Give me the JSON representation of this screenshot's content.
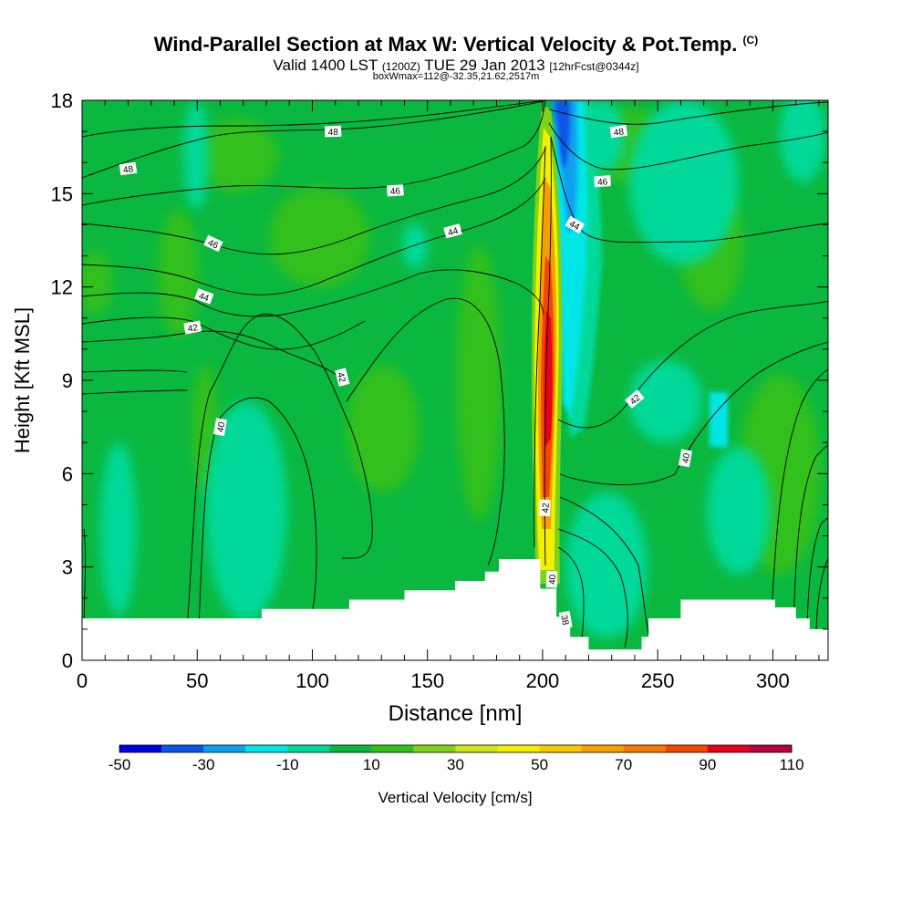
{
  "title": "Wind-Parallel Section at Max W: Vertical Velocity & Pot.Temp.",
  "copyright_mark": "(C)",
  "subtitle": {
    "valid": "Valid 1400 LST",
    "utc": "(1200Z)",
    "date": "TUE 29 Jan 2013",
    "forecast": "[12hrFcst@0344z]"
  },
  "subtitle2": "boxWmax=112@-32.35,21.62,2517m",
  "chart_data": {
    "type": "heatmap",
    "xlabel": "Distance [nm]",
    "ylabel": "Height [Kft MSL]",
    "xlim": [
      0,
      324
    ],
    "ylim": [
      0,
      18
    ],
    "x_ticks": [
      "0",
      "50",
      "100",
      "150",
      "200",
      "250",
      "300"
    ],
    "y_ticks": [
      "0",
      "3",
      "6",
      "9",
      "12",
      "15",
      "18"
    ],
    "colorbar": {
      "label": "Vertical Velocity [cm/s]",
      "tick_labels": [
        "-50",
        "-30",
        "-10",
        "10",
        "30",
        "50",
        "70",
        "90",
        "110"
      ],
      "range": [
        -50,
        110
      ],
      "colors": [
        "#0000e6",
        "#0a55e6",
        "#0aa0f0",
        "#00e6e6",
        "#00d999",
        "#0ab840",
        "#33c01a",
        "#7fd21a",
        "#cce619",
        "#f0f000",
        "#f5c800",
        "#f5a000",
        "#f57800",
        "#f54600",
        "#e6001a",
        "#b4003c"
      ]
    },
    "background_color": "#0ab840",
    "contour_labels": [
      {
        "label": "48",
        "x": 20,
        "y": 15.8,
        "rot": -8
      },
      {
        "label": "48",
        "x": 109,
        "y": 17.0,
        "rot": -2
      },
      {
        "label": "48",
        "x": 233,
        "y": 17.0,
        "rot": -8
      },
      {
        "label": "46",
        "x": 57,
        "y": 13.4,
        "rot": 25
      },
      {
        "label": "46",
        "x": 136,
        "y": 15.1,
        "rot": -4
      },
      {
        "label": "46",
        "x": 226,
        "y": 15.4,
        "rot": -4
      },
      {
        "label": "44",
        "x": 53,
        "y": 11.7,
        "rot": 20
      },
      {
        "label": "44",
        "x": 161,
        "y": 13.8,
        "rot": -15
      },
      {
        "label": "44",
        "x": 214,
        "y": 14.0,
        "rot": 30
      },
      {
        "label": "42",
        "x": 48,
        "y": 10.7,
        "rot": -10
      },
      {
        "label": "42",
        "x": 113,
        "y": 9.1,
        "rot": 75
      },
      {
        "label": "42",
        "x": 240,
        "y": 8.4,
        "rot": -40
      },
      {
        "label": "42",
        "x": 201,
        "y": 4.9,
        "rot": -88
      },
      {
        "label": "40",
        "x": 60,
        "y": 7.5,
        "rot": -80
      },
      {
        "label": "40",
        "x": 262,
        "y": 6.5,
        "rot": -80
      },
      {
        "label": "40",
        "x": 204,
        "y": 2.6,
        "rot": -88
      },
      {
        "label": "38",
        "x": 210,
        "y": 1.3,
        "rot": 80
      }
    ],
    "velocity_features": [
      {
        "desc": "updraft",
        "x": 200,
        "y": 8,
        "max": 110
      },
      {
        "desc": "downdraft",
        "x": 209,
        "y": 16,
        "min": -40
      }
    ],
    "terrain_kft": [
      [
        0,
        1.35
      ],
      [
        78,
        1.35
      ],
      [
        78,
        1.65
      ],
      [
        116,
        1.65
      ],
      [
        116,
        1.95
      ],
      [
        140,
        1.95
      ],
      [
        140,
        2.25
      ],
      [
        162,
        2.25
      ],
      [
        162,
        2.55
      ],
      [
        175,
        2.55
      ],
      [
        175,
        2.85
      ],
      [
        181,
        2.85
      ],
      [
        181,
        3.25
      ],
      [
        199,
        3.25
      ],
      [
        199,
        2.3
      ],
      [
        206,
        2.3
      ],
      [
        206,
        1.4
      ],
      [
        212,
        1.4
      ],
      [
        212,
        0.75
      ],
      [
        220,
        0.75
      ],
      [
        220,
        0.35
      ],
      [
        243,
        0.35
      ],
      [
        243,
        0.75
      ],
      [
        246,
        0.75
      ],
      [
        246,
        1.35
      ],
      [
        260,
        1.35
      ],
      [
        260,
        1.95
      ],
      [
        301,
        1.95
      ],
      [
        301,
        1.7
      ],
      [
        310,
        1.7
      ],
      [
        310,
        1.35
      ],
      [
        316,
        1.35
      ],
      [
        316,
        1.0
      ],
      [
        324,
        1.0
      ]
    ]
  }
}
